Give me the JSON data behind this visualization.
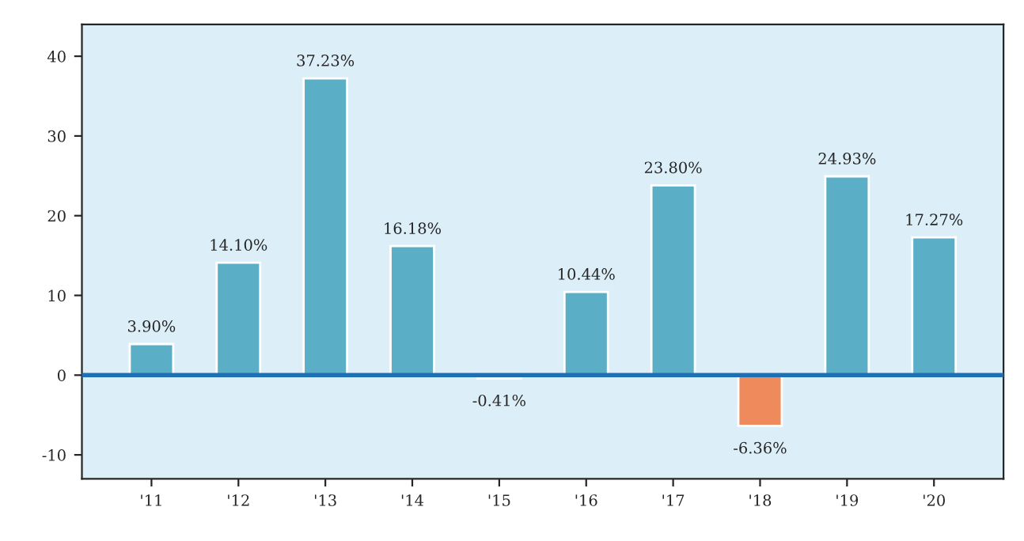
{
  "chart_data": {
    "type": "bar",
    "categories": [
      "'11",
      "'12",
      "'13",
      "'14",
      "'15",
      "'16",
      "'17",
      "'18",
      "'19",
      "'20"
    ],
    "values": [
      3.9,
      14.1,
      37.23,
      16.18,
      -0.41,
      10.44,
      23.8,
      -6.36,
      24.93,
      17.27
    ],
    "colors": [
      "#5aaec6",
      "#5aaec6",
      "#5aaec6",
      "#5aaec6",
      "#ee8a5c",
      "#5aaec6",
      "#5aaec6",
      "#ee8a5c",
      "#5aaec6",
      "#5aaec6"
    ],
    "value_labels": [
      "3.90%",
      "14.10%",
      "37.23%",
      "16.18%",
      "-0.41%",
      "10.44%",
      "23.80%",
      "-6.36%",
      "24.93%",
      "17.27%"
    ],
    "ylim": [
      -13,
      44
    ],
    "yticks": [
      -10,
      0,
      10,
      20,
      30,
      40
    ],
    "ref_lines": [
      {
        "axis": "y",
        "value": 0,
        "color": "#1f6fb4"
      }
    ],
    "grid": false,
    "legend": false
  }
}
